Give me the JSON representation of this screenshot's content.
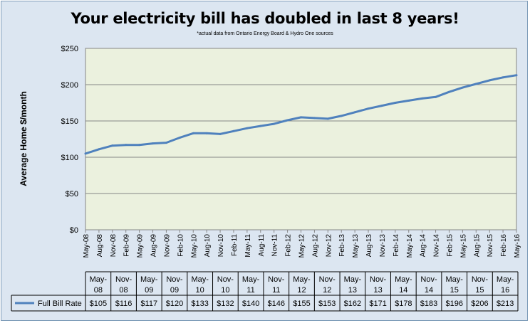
{
  "chart_data": {
    "type": "line",
    "title": "Your electricity bill has doubled in last 8 years!",
    "subtitle": "*actual data from Ontario Energy Board & Hydro One sources",
    "ylabel": "Average Home $/month",
    "ylim": [
      0,
      250
    ],
    "yticks": [
      "$0",
      "$50",
      "$100",
      "$150",
      "$200",
      "$250"
    ],
    "ytick_values": [
      0,
      50,
      100,
      150,
      200,
      250
    ],
    "grid": true,
    "x": [
      "May-08",
      "Aug-08",
      "Nov-08",
      "Feb-09",
      "May-09",
      "Aug-09",
      "Nov-09",
      "Feb-10",
      "May-10",
      "Aug-10",
      "Nov-10",
      "Feb-11",
      "May-11",
      "Aug-11",
      "Nov-11",
      "Feb-12",
      "May-12",
      "Aug-12",
      "Nov-12",
      "Feb-13",
      "May-13",
      "Aug-13",
      "Nov-13",
      "Feb-14",
      "May-14",
      "Aug-14",
      "Nov-14",
      "Feb-15",
      "May-15",
      "Aug-15",
      "Nov-15",
      "Feb-16",
      "May-16"
    ],
    "series": [
      {
        "name": "Full Bill Rate",
        "color": "#4f81bd",
        "values": [
          105,
          111,
          116,
          117,
          117,
          119,
          120,
          127,
          133,
          133,
          132,
          136,
          140,
          143,
          146,
          151,
          155,
          154,
          153,
          157,
          162,
          167,
          171,
          175,
          178,
          181,
          183,
          190,
          196,
          201,
          206,
          210,
          213
        ]
      }
    ],
    "table": {
      "columns": [
        "May-08",
        "Nov-08",
        "May-09",
        "Nov-09",
        "May-10",
        "Nov-10",
        "May-11",
        "Nov-11",
        "May-12",
        "Nov-12",
        "May-13",
        "Nov-13",
        "May-14",
        "Nov-14",
        "May-15",
        "Nov-15",
        "May-16"
      ],
      "row_label": "Full Bill Rate",
      "values": [
        "$105",
        "$116",
        "$117",
        "$120",
        "$133",
        "$132",
        "$140",
        "$146",
        "$155",
        "$153",
        "$162",
        "$171",
        "$178",
        "$183",
        "$196",
        "$206",
        "$213"
      ]
    }
  }
}
